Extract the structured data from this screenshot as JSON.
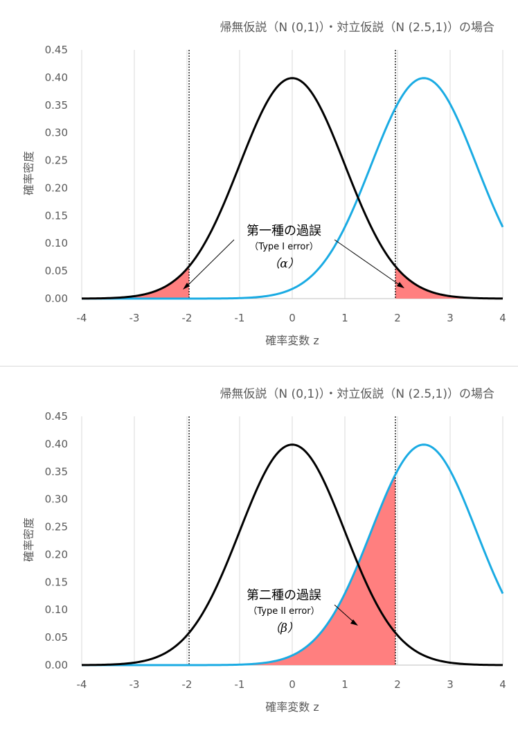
{
  "chart_data": [
    {
      "type": "line",
      "title": "帰無仮説（N (0,1)）・対立仮説（N (2.5,1)）の場合",
      "xlabel": "確率変数 z",
      "ylabel": "確率密度",
      "xlim": [
        -4,
        4
      ],
      "ylim": [
        0,
        0.45
      ],
      "x_ticks": [
        "-4",
        "-3",
        "-2",
        "-1",
        "0",
        "1",
        "2",
        "3",
        "4"
      ],
      "y_ticks": [
        "0.00",
        "0.05",
        "0.10",
        "0.15",
        "0.20",
        "0.25",
        "0.30",
        "0.35",
        "0.40",
        "0.45"
      ],
      "grid": "vertical",
      "series": [
        {
          "mean": 0,
          "sd": 1,
          "color": "#000000"
        },
        {
          "mean": 2.5,
          "sd": 1,
          "color": "#1aabe3"
        }
      ],
      "critical_values": [
        -1.96,
        1.96
      ],
      "shaded_regions": [
        {
          "curve": 0,
          "from": -4,
          "to": -1.96
        },
        {
          "curve": 0,
          "from": 1.96,
          "to": 4
        }
      ],
      "shade_color": "#ff7f7f",
      "annotation": {
        "line1": "第一種の過誤",
        "line2": "（Type I error）",
        "line3": "（α）"
      }
    },
    {
      "type": "line",
      "title": "帰無仮説（N (0,1)）・対立仮説（N (2.5,1)）の場合",
      "xlabel": "確率変数 z",
      "ylabel": "確率密度",
      "xlim": [
        -4,
        4
      ],
      "ylim": [
        0,
        0.45
      ],
      "x_ticks": [
        "-4",
        "-3",
        "-2",
        "-1",
        "0",
        "1",
        "2",
        "3",
        "4"
      ],
      "y_ticks": [
        "0.00",
        "0.05",
        "0.10",
        "0.15",
        "0.20",
        "0.25",
        "0.30",
        "0.35",
        "0.40",
        "0.45"
      ],
      "grid": "vertical",
      "series": [
        {
          "mean": 0,
          "sd": 1,
          "color": "#000000"
        },
        {
          "mean": 2.5,
          "sd": 1,
          "color": "#1aabe3"
        }
      ],
      "critical_values": [
        -1.96,
        1.96
      ],
      "shaded_regions": [
        {
          "curve": 1,
          "from": -4,
          "to": 1.96
        }
      ],
      "shade_color": "#ff7f7f",
      "annotation": {
        "line1": "第二種の過誤",
        "line2": "（Type II error）",
        "line3": "（β）"
      }
    }
  ]
}
